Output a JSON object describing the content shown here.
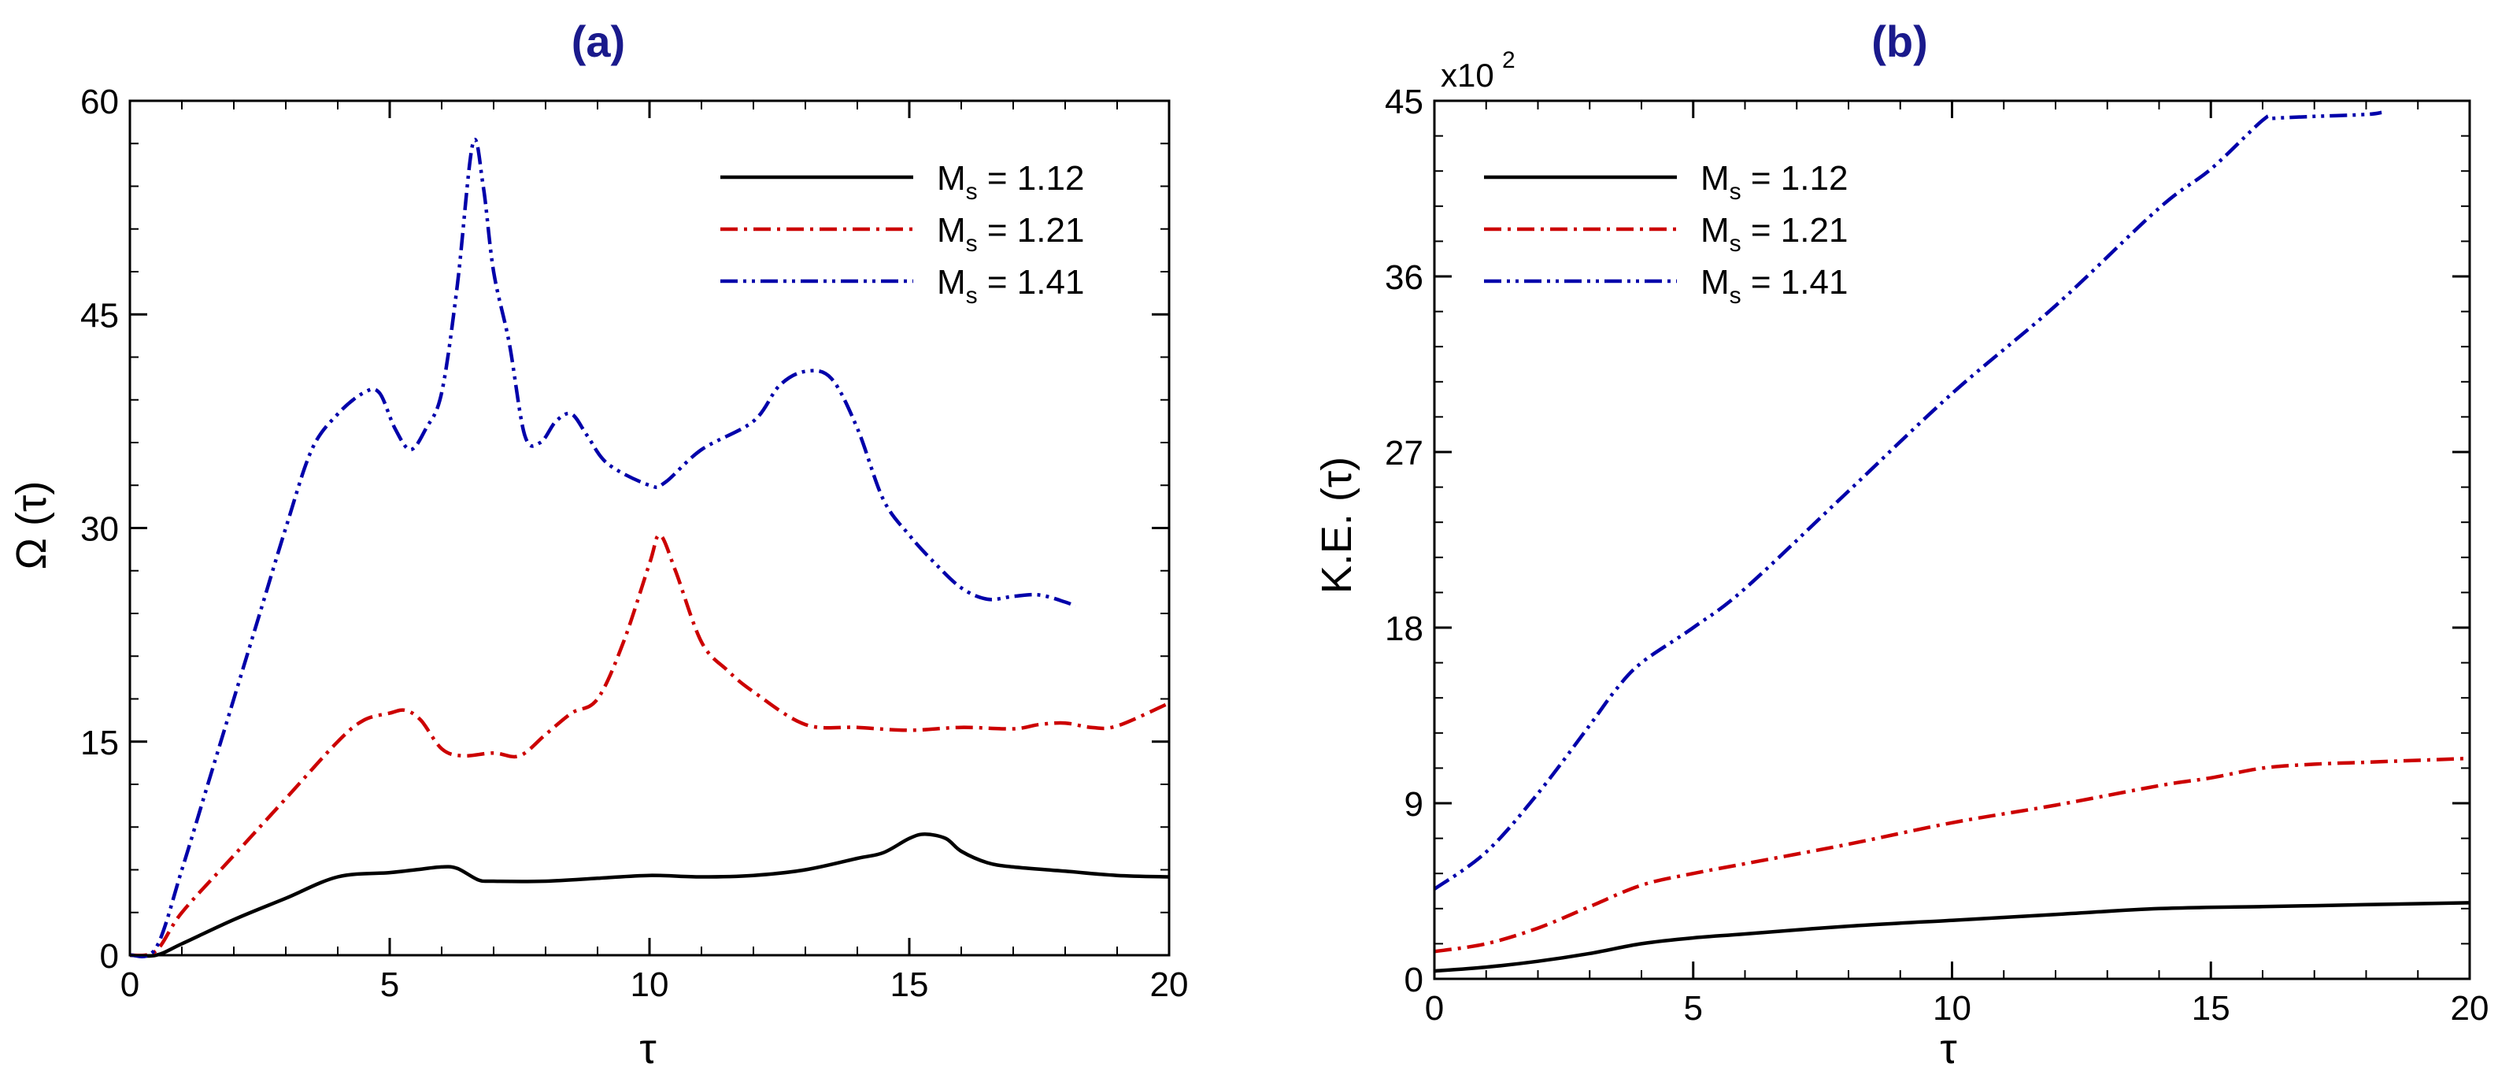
{
  "figure": {
    "colors": {
      "s112": "#000000",
      "s121": "#cc0000",
      "s141": "#0000aa",
      "panel_title": "#1a1a8c",
      "axis": "#000000"
    }
  },
  "chart_data": [
    {
      "type": "line",
      "panel_label": "(a)",
      "title": "(a)",
      "xlabel": "τ",
      "ylabel": "Ω (τ)",
      "xlim": [
        0,
        20
      ],
      "ylim": [
        0,
        60
      ],
      "xticks": [
        0,
        5,
        10,
        15,
        20
      ],
      "yticks": [
        0,
        15,
        30,
        45,
        60
      ],
      "xtick_labels": [
        "0",
        "5",
        "10",
        "15",
        "20"
      ],
      "ytick_labels": [
        "0",
        "15",
        "30",
        "45",
        "60"
      ],
      "grid": false,
      "legend_position": "top-right",
      "series": [
        {
          "name": "Ms = 1.12",
          "legend_main": "M",
          "legend_sub": "s",
          "legend_value": " = 1.12",
          "color": "#000000",
          "style": "solid",
          "x": [
            0,
            0.5,
            1,
            2,
            3,
            4,
            5,
            5.5,
            6,
            6.3,
            6.7,
            7,
            8,
            9,
            10,
            11,
            12,
            13,
            14,
            14.5,
            15,
            15.3,
            15.7,
            16,
            16.5,
            17,
            18,
            19,
            20
          ],
          "y": [
            0,
            0,
            0.8,
            2.5,
            4,
            5.5,
            5.8,
            6,
            6.2,
            6.1,
            5.3,
            5.2,
            5.2,
            5.4,
            5.6,
            5.5,
            5.6,
            6,
            6.8,
            7.2,
            8.2,
            8.5,
            8.2,
            7.3,
            6.5,
            6.2,
            5.9,
            5.6,
            5.5
          ]
        },
        {
          "name": "Ms = 1.21",
          "legend_main": "M",
          "legend_sub": "s",
          "legend_value": " = 1.21",
          "color": "#cc0000",
          "style": "dashdot",
          "x": [
            0,
            0.5,
            1,
            2,
            3,
            4,
            4.5,
            5,
            5.3,
            5.6,
            6,
            6.4,
            7,
            7.5,
            8,
            8.5,
            9,
            9.5,
            10,
            10.2,
            10.5,
            11,
            11.5,
            12,
            13,
            14,
            15,
            16,
            17,
            17.5,
            18,
            18.5,
            19,
            20
          ],
          "y": [
            0,
            0.3,
            3,
            7,
            11,
            15,
            16.5,
            17,
            17.2,
            16.5,
            14.5,
            14,
            14.2,
            14,
            15.5,
            17,
            18,
            22,
            27.5,
            29.5,
            27,
            22,
            20,
            18.5,
            16.2,
            16,
            15.8,
            16,
            15.9,
            16.2,
            16.3,
            16,
            16.1,
            17.7
          ]
        },
        {
          "name": "Ms = 1.41",
          "legend_main": "M",
          "legend_sub": "s",
          "legend_value": " = 1.41",
          "color": "#0000aa",
          "style": "dashdotdot",
          "x": [
            0,
            0.5,
            1,
            1.5,
            2,
            2.5,
            3,
            3.5,
            4,
            4.5,
            4.8,
            5.1,
            5.4,
            5.7,
            6,
            6.3,
            6.6,
            6.8,
            7,
            7.3,
            7.6,
            7.9,
            8.2,
            8.5,
            8.8,
            9.2,
            10,
            10.3,
            11,
            12,
            12.5,
            13,
            13.5,
            14,
            14.5,
            15,
            15.5,
            16,
            16.5,
            17,
            17.5,
            18,
            18.2
          ],
          "y": [
            0,
            0.5,
            6,
            12,
            18,
            24,
            30,
            35.5,
            38,
            39.5,
            39.5,
            37,
            35.5,
            37,
            39.5,
            47,
            57,
            54,
            48,
            43,
            36.5,
            36,
            37.5,
            38,
            36.5,
            34.5,
            33,
            33.2,
            35.5,
            37.5,
            40,
            41,
            40.5,
            37,
            32,
            29.5,
            27.5,
            25.8,
            25,
            25.2,
            25.3,
            24.8,
            24.5
          ]
        }
      ]
    },
    {
      "type": "line",
      "panel_label": "(b)",
      "title": "(b)",
      "xlabel": "τ",
      "ylabel": "K.E. (τ)",
      "scale_label": "x10",
      "scale_exponent": "2",
      "xlim": [
        0,
        20
      ],
      "ylim": [
        0,
        45
      ],
      "xticks": [
        0,
        5,
        10,
        15,
        20
      ],
      "yticks": [
        0,
        9,
        18,
        27,
        36,
        45
      ],
      "xtick_labels": [
        "0",
        "5",
        "10",
        "15",
        "20"
      ],
      "ytick_labels": [
        "0",
        "9",
        "18",
        "27",
        "36",
        "45"
      ],
      "grid": false,
      "legend_position": "top-left",
      "series": [
        {
          "name": "Ms = 1.12",
          "legend_main": "M",
          "legend_sub": "s",
          "legend_value": " = 1.12",
          "color": "#000000",
          "style": "solid",
          "x": [
            0,
            1,
            2,
            3,
            4,
            5,
            6,
            8,
            10,
            12,
            14,
            16,
            18,
            20
          ],
          "y": [
            0.4,
            0.6,
            0.9,
            1.3,
            1.8,
            2.1,
            2.3,
            2.7,
            3.0,
            3.3,
            3.6,
            3.7,
            3.8,
            3.9
          ]
        },
        {
          "name": "Ms = 1.21",
          "legend_main": "M",
          "legend_sub": "s",
          "legend_value": " = 1.21",
          "color": "#cc0000",
          "style": "dashdot",
          "x": [
            0,
            1,
            2,
            3,
            4,
            5,
            6,
            8,
            10,
            12,
            14,
            15,
            16,
            17,
            18,
            19,
            20
          ],
          "y": [
            1.4,
            1.8,
            2.6,
            3.7,
            4.8,
            5.4,
            5.9,
            6.9,
            8.0,
            8.9,
            9.9,
            10.3,
            10.8,
            11.0,
            11.1,
            11.2,
            11.3
          ]
        },
        {
          "name": "Ms = 1.41",
          "legend_main": "M",
          "legend_sub": "s",
          "legend_value": " = 1.41",
          "color": "#0000aa",
          "style": "dashdotdot",
          "x": [
            0,
            1,
            2,
            3,
            3.5,
            4,
            5,
            6,
            8,
            10,
            12,
            14,
            15,
            16,
            16.2,
            17,
            18,
            18.3
          ],
          "y": [
            4.6,
            6.5,
            9.5,
            13,
            14.8,
            16.2,
            18,
            20,
            25,
            30,
            34.5,
            39.5,
            41.5,
            44,
            44.1,
            44.2,
            44.3,
            44.4
          ]
        }
      ]
    }
  ]
}
